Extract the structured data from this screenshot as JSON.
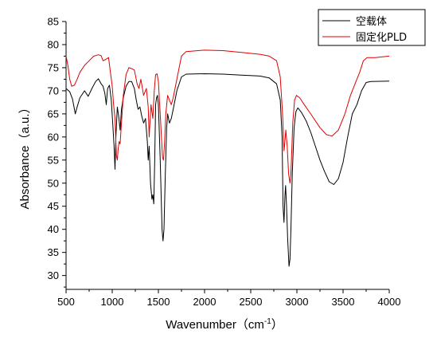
{
  "chart_data": {
    "type": "line",
    "xlabel": "Wavenumber",
    "xlabel_unit": "cm",
    "xlabel_unit_exp": "-1",
    "ylabel": "Absorbance（a.u.）",
    "xlim": [
      500,
      4000
    ],
    "ylim": [
      27,
      85
    ],
    "xticks": [
      500,
      1000,
      1500,
      2000,
      2500,
      3000,
      3500,
      4000
    ],
    "yticks": [
      30,
      35,
      40,
      45,
      50,
      55,
      60,
      65,
      70,
      75,
      80,
      85
    ],
    "grid": false,
    "legend_position": "top-right",
    "series": [
      {
        "name": "空载体",
        "color": "#000000",
        "points": [
          [
            500,
            70.5
          ],
          [
            540,
            69.8
          ],
          [
            570,
            68.2
          ],
          [
            600,
            65.0
          ],
          [
            620,
            66.5
          ],
          [
            650,
            68.5
          ],
          [
            700,
            70.0
          ],
          [
            740,
            68.8
          ],
          [
            780,
            70.5
          ],
          [
            820,
            72.0
          ],
          [
            850,
            72.6
          ],
          [
            880,
            71.5
          ],
          [
            900,
            71.0
          ],
          [
            920,
            69.5
          ],
          [
            935,
            67.0
          ],
          [
            950,
            70.5
          ],
          [
            970,
            71.2
          ],
          [
            990,
            68.0
          ],
          [
            1005,
            63.0
          ],
          [
            1020,
            58.0
          ],
          [
            1030,
            53.0
          ],
          [
            1040,
            60.0
          ],
          [
            1055,
            66.5
          ],
          [
            1070,
            64.5
          ],
          [
            1085,
            61.5
          ],
          [
            1100,
            66.0
          ],
          [
            1120,
            68.5
          ],
          [
            1150,
            71.0
          ],
          [
            1180,
            72.0
          ],
          [
            1210,
            72.0
          ],
          [
            1240,
            70.5
          ],
          [
            1260,
            68.0
          ],
          [
            1280,
            66.0
          ],
          [
            1300,
            66.5
          ],
          [
            1320,
            64.5
          ],
          [
            1340,
            63.0
          ],
          [
            1360,
            64.0
          ],
          [
            1380,
            59.0
          ],
          [
            1390,
            55.0
          ],
          [
            1400,
            58.0
          ],
          [
            1415,
            50.0
          ],
          [
            1430,
            46.5
          ],
          [
            1440,
            47.5
          ],
          [
            1450,
            45.5
          ],
          [
            1460,
            55.0
          ],
          [
            1470,
            67.0
          ],
          [
            1480,
            68.5
          ],
          [
            1490,
            69.0
          ],
          [
            1500,
            67.0
          ],
          [
            1520,
            55.0
          ],
          [
            1540,
            40.0
          ],
          [
            1550,
            37.5
          ],
          [
            1560,
            40.0
          ],
          [
            1575,
            52.0
          ],
          [
            1590,
            62.0
          ],
          [
            1600,
            65.0
          ],
          [
            1620,
            63.0
          ],
          [
            1640,
            64.0
          ],
          [
            1660,
            66.0
          ],
          [
            1700,
            70.0
          ],
          [
            1750,
            73.0
          ],
          [
            1800,
            73.6
          ],
          [
            2000,
            73.7
          ],
          [
            2200,
            73.6
          ],
          [
            2400,
            73.4
          ],
          [
            2600,
            73.2
          ],
          [
            2700,
            72.8
          ],
          [
            2780,
            71.5
          ],
          [
            2820,
            68.0
          ],
          [
            2840,
            60.0
          ],
          [
            2850,
            45.0
          ],
          [
            2860,
            41.5
          ],
          [
            2870,
            47.0
          ],
          [
            2878,
            49.5
          ],
          [
            2888,
            45.0
          ],
          [
            2900,
            38.0
          ],
          [
            2915,
            32.0
          ],
          [
            2925,
            33.5
          ],
          [
            2935,
            40.0
          ],
          [
            2950,
            52.0
          ],
          [
            2970,
            62.0
          ],
          [
            2990,
            65.5
          ],
          [
            3010,
            66.3
          ],
          [
            3050,
            65.3
          ],
          [
            3100,
            63.5
          ],
          [
            3150,
            61.0
          ],
          [
            3200,
            58.0
          ],
          [
            3250,
            55.0
          ],
          [
            3300,
            52.5
          ],
          [
            3350,
            50.3
          ],
          [
            3400,
            49.7
          ],
          [
            3450,
            51.0
          ],
          [
            3500,
            54.5
          ],
          [
            3550,
            60.0
          ],
          [
            3600,
            65.0
          ],
          [
            3650,
            67.0
          ],
          [
            3700,
            70.0
          ],
          [
            3750,
            71.8
          ],
          [
            3800,
            72.0
          ],
          [
            4000,
            72.1
          ]
        ]
      },
      {
        "name": "固定化PLD",
        "color": "#e00000",
        "points": [
          [
            500,
            77.5
          ],
          [
            520,
            75.5
          ],
          [
            540,
            72.5
          ],
          [
            560,
            71.0
          ],
          [
            590,
            71.2
          ],
          [
            620,
            72.5
          ],
          [
            650,
            74.0
          ],
          [
            700,
            75.5
          ],
          [
            750,
            76.5
          ],
          [
            800,
            77.5
          ],
          [
            850,
            77.8
          ],
          [
            880,
            77.6
          ],
          [
            900,
            76.5
          ],
          [
            930,
            76.8
          ],
          [
            960,
            77.2
          ],
          [
            980,
            74.0
          ],
          [
            1000,
            71.0
          ],
          [
            1015,
            67.0
          ],
          [
            1030,
            64.0
          ],
          [
            1045,
            56.0
          ],
          [
            1055,
            55.0
          ],
          [
            1065,
            57.5
          ],
          [
            1075,
            59.0
          ],
          [
            1085,
            58.5
          ],
          [
            1100,
            63.0
          ],
          [
            1120,
            69.0
          ],
          [
            1150,
            73.5
          ],
          [
            1180,
            75.0
          ],
          [
            1210,
            74.8
          ],
          [
            1240,
            74.5
          ],
          [
            1270,
            71.5
          ],
          [
            1290,
            70.5
          ],
          [
            1310,
            72.5
          ],
          [
            1340,
            69.0
          ],
          [
            1370,
            70.5
          ],
          [
            1390,
            66.5
          ],
          [
            1400,
            60.0
          ],
          [
            1420,
            67.0
          ],
          [
            1440,
            64.0
          ],
          [
            1455,
            70.0
          ],
          [
            1470,
            73.5
          ],
          [
            1485,
            73.7
          ],
          [
            1500,
            72.0
          ],
          [
            1520,
            65.0
          ],
          [
            1545,
            55.5
          ],
          [
            1555,
            55.0
          ],
          [
            1565,
            58.0
          ],
          [
            1580,
            65.0
          ],
          [
            1600,
            69.0
          ],
          [
            1620,
            68.0
          ],
          [
            1640,
            67.0
          ],
          [
            1660,
            68.5
          ],
          [
            1700,
            72.5
          ],
          [
            1750,
            77.5
          ],
          [
            1800,
            78.5
          ],
          [
            2000,
            78.8
          ],
          [
            2200,
            78.7
          ],
          [
            2400,
            78.3
          ],
          [
            2600,
            77.9
          ],
          [
            2700,
            77.5
          ],
          [
            2780,
            76.5
          ],
          [
            2820,
            73.0
          ],
          [
            2845,
            65.0
          ],
          [
            2860,
            57.0
          ],
          [
            2868,
            58.5
          ],
          [
            2880,
            61.5
          ],
          [
            2895,
            58.0
          ],
          [
            2910,
            52.0
          ],
          [
            2925,
            50.0
          ],
          [
            2935,
            52.0
          ],
          [
            2955,
            63.0
          ],
          [
            2975,
            68.0
          ],
          [
            2995,
            69.0
          ],
          [
            3030,
            68.5
          ],
          [
            3080,
            67.0
          ],
          [
            3150,
            65.0
          ],
          [
            3250,
            62.0
          ],
          [
            3320,
            60.5
          ],
          [
            3380,
            60.2
          ],
          [
            3450,
            61.5
          ],
          [
            3520,
            65.0
          ],
          [
            3580,
            69.0
          ],
          [
            3640,
            72.0
          ],
          [
            3680,
            74.0
          ],
          [
            3720,
            76.5
          ],
          [
            3760,
            77.2
          ],
          [
            3850,
            77.2
          ],
          [
            4000,
            77.5
          ]
        ]
      }
    ]
  }
}
